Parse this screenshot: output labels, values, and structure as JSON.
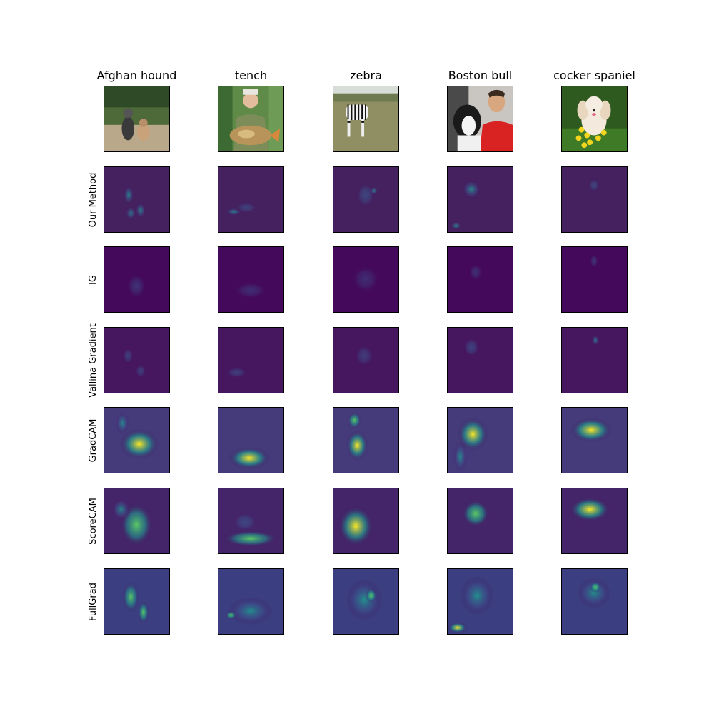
{
  "figure": {
    "columns": [
      {
        "title": "Afghan hound",
        "photo": "two-dogs-on-grass"
      },
      {
        "title": "tench",
        "photo": "man-holding-fish"
      },
      {
        "title": "zebra",
        "photo": "zebra-on-grassland"
      },
      {
        "title": "Boston bull",
        "photo": "dog-and-man-in-car"
      },
      {
        "title": "cocker spaniel",
        "photo": "white-dog-with-yellow-flowers"
      }
    ],
    "rows": [
      {
        "label": "Our Method"
      },
      {
        "label": "IG"
      },
      {
        "label": "Vallina Gradient"
      },
      {
        "label": "GradCAM"
      },
      {
        "label": "ScoreCAM"
      },
      {
        "label": "FullGrad"
      }
    ],
    "colormap": {
      "name": "viridis",
      "stops": [
        "#440154",
        "#3b528b",
        "#21918c",
        "#5ec962",
        "#fde725"
      ]
    }
  }
}
